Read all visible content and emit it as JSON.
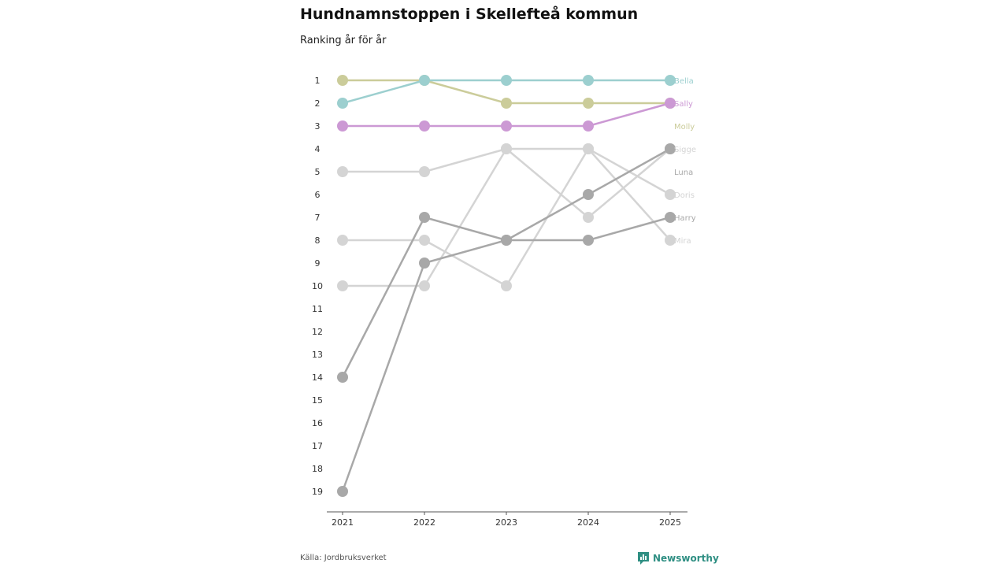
{
  "header": {
    "title": "Hundnamnstoppen i Skellefteå kommun",
    "subtitle": "Ranking år för år"
  },
  "footer": {
    "source": "Källa: Jordbruksverket",
    "brand": "Newsworthy"
  },
  "colors": {
    "axis": "#555555",
    "brand": "#2f8f83"
  },
  "chart_data": {
    "type": "line",
    "title": "Hundnamnstoppen i Skellefteå kommun",
    "subtitle": "Ranking år för år",
    "x": [
      "2021",
      "2022",
      "2023",
      "2024",
      "2025"
    ],
    "y_ticks": [
      "1",
      "2",
      "3",
      "4",
      "5",
      "6",
      "7",
      "8",
      "9",
      "10",
      "11",
      "12",
      "13",
      "14",
      "15",
      "16",
      "17",
      "18",
      "19"
    ],
    "ylim": [
      1,
      19
    ],
    "y_inverted": true,
    "series": [
      {
        "name": "Mira",
        "color": "#d4d4d4",
        "values": [
          10,
          10,
          4,
          4,
          8
        ]
      },
      {
        "name": "Doris",
        "color": "#d4d4d4",
        "values": [
          8,
          8,
          10,
          4,
          6
        ]
      },
      {
        "name": "Sigge",
        "color": "#d4d4d4",
        "values": [
          5,
          5,
          4,
          7,
          4
        ]
      },
      {
        "name": "Harry",
        "color": "#a8a8a8",
        "values": [
          14,
          7,
          8,
          8,
          7
        ]
      },
      {
        "name": "Luna",
        "color": "#a8a8a8",
        "values": [
          19,
          9,
          8,
          6,
          4
        ]
      },
      {
        "name": "Molly",
        "color": "#cbcc9a",
        "values": [
          1,
          1,
          2,
          2,
          2
        ]
      },
      {
        "name": "Bella",
        "color": "#9ccfcf",
        "values": [
          2,
          1,
          1,
          1,
          1
        ]
      },
      {
        "name": "Sally",
        "color": "#cc99d4",
        "values": [
          3,
          3,
          3,
          3,
          2
        ]
      }
    ],
    "end_labels": [
      {
        "name": "Bella",
        "rank": 1
      },
      {
        "name": "Sally",
        "rank": 2
      },
      {
        "name": "Molly",
        "rank": 3
      },
      {
        "name": "Sigge",
        "rank": 4
      },
      {
        "name": "Luna",
        "rank": 5
      },
      {
        "name": "Doris",
        "rank": 6
      },
      {
        "name": "Harry",
        "rank": 7
      },
      {
        "name": "Mira",
        "rank": 8
      }
    ]
  }
}
